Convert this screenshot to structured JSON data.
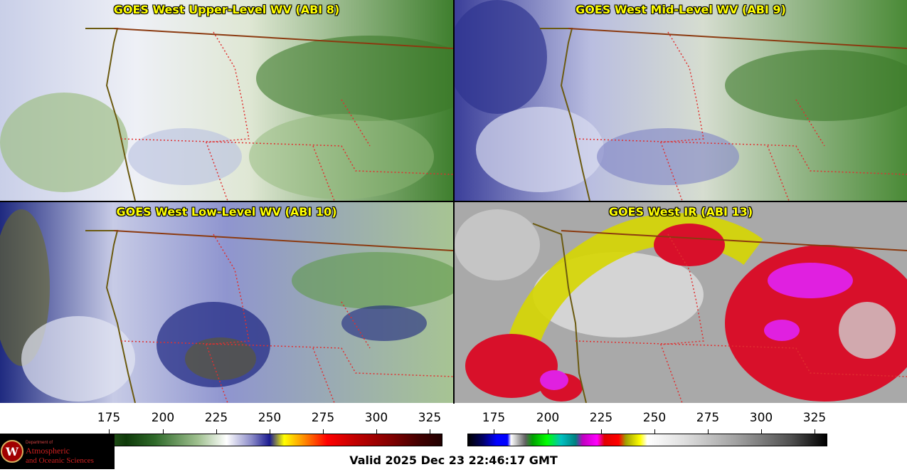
{
  "panels": [
    {
      "title": "GOES West Upper-Level WV (ABI 8)"
    },
    {
      "title": "GOES West Mid-Level WV (ABI 9)"
    },
    {
      "title": "GOES West Low-Level WV (ABI 10)"
    },
    {
      "title": "GOES West IR (ABI 13)"
    }
  ],
  "colorbar_wv": {
    "ticks": [
      "175",
      "200",
      "225",
      "250",
      "275",
      "300",
      "325"
    ]
  },
  "colorbar_ir": {
    "ticks": [
      "175",
      "200",
      "225",
      "250",
      "275",
      "300",
      "325"
    ]
  },
  "logo": {
    "line1": "Department of",
    "line2": "Atmospheric",
    "line3": "and Oceanic Sciences",
    "seal_letter": "W"
  },
  "valid_text": "Valid 2025 Dec 23 22:46:17 GMT"
}
